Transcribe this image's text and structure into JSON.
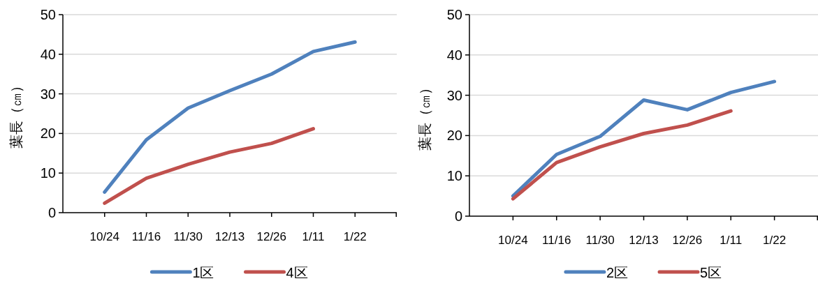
{
  "chart_data": [
    {
      "type": "line",
      "ylabel": "葉長（㎝）",
      "categories": [
        "10/24",
        "11/16",
        "11/30",
        "12/13",
        "12/26",
        "1/11",
        "1/22"
      ],
      "ylim": [
        0,
        50
      ],
      "yticks": [
        0,
        10,
        20,
        30,
        40,
        50
      ],
      "grid": "y",
      "legend": "bottom",
      "series": [
        {
          "name": "1区",
          "color": "#4f81bd",
          "values": [
            5.2,
            18.4,
            26.4,
            30.8,
            35.0,
            40.7,
            43.1
          ]
        },
        {
          "name": "4区",
          "color": "#c0504d",
          "values": [
            2.4,
            8.7,
            12.2,
            15.3,
            17.5,
            21.2,
            null
          ]
        }
      ]
    },
    {
      "type": "line",
      "ylabel": "葉長（㎝）",
      "categories": [
        "10/24",
        "11/16",
        "11/30",
        "12/13",
        "12/26",
        "1/11",
        "1/22"
      ],
      "ylim": [
        0,
        50
      ],
      "yticks": [
        0,
        10,
        20,
        30,
        40,
        50
      ],
      "grid": "y",
      "legend": "bottom",
      "series": [
        {
          "name": "2区",
          "color": "#4f81bd",
          "values": [
            5.0,
            15.3,
            19.8,
            28.8,
            26.4,
            30.7,
            33.4
          ]
        },
        {
          "name": "5区",
          "color": "#c0504d",
          "values": [
            4.3,
            13.3,
            17.2,
            20.5,
            22.6,
            26.1,
            null
          ]
        }
      ]
    }
  ]
}
